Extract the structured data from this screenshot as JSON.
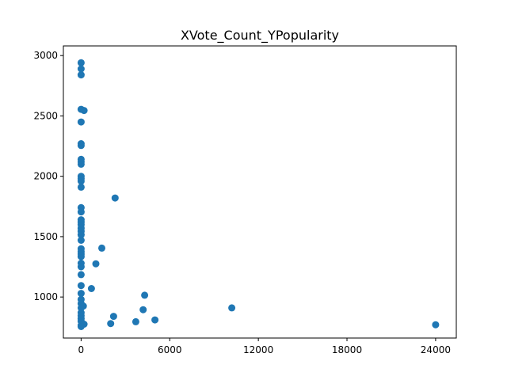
{
  "chart_data": {
    "type": "scatter",
    "title": "XVote_Count_YPopularity",
    "xlabel": "",
    "ylabel": "",
    "xlim": [
      -1200,
      25400
    ],
    "ylim": [
      660,
      3080
    ],
    "x_ticks": [
      0,
      6000,
      12000,
      18000,
      24000
    ],
    "x_tick_labels": [
      "0",
      "6000",
      "12000",
      "18000",
      "24000"
    ],
    "y_ticks": [
      1000,
      1500,
      2000,
      2500,
      3000
    ],
    "y_tick_labels": [
      "1000",
      "1500",
      "2000",
      "2500",
      "3000"
    ],
    "grid": false,
    "marker_color": "#1f77b4",
    "series": [
      {
        "name": "points",
        "points": [
          [
            0,
            2940
          ],
          [
            0,
            2890
          ],
          [
            0,
            2840
          ],
          [
            0,
            2555
          ],
          [
            200,
            2545
          ],
          [
            0,
            2450
          ],
          [
            0,
            2270
          ],
          [
            0,
            2255
          ],
          [
            0,
            2140
          ],
          [
            0,
            2120
          ],
          [
            0,
            2100
          ],
          [
            0,
            2000
          ],
          [
            0,
            1980
          ],
          [
            0,
            1960
          ],
          [
            0,
            1910
          ],
          [
            2300,
            1820
          ],
          [
            0,
            1740
          ],
          [
            0,
            1705
          ],
          [
            0,
            1640
          ],
          [
            0,
            1620
          ],
          [
            0,
            1600
          ],
          [
            0,
            1570
          ],
          [
            0,
            1545
          ],
          [
            0,
            1515
          ],
          [
            0,
            1470
          ],
          [
            1400,
            1405
          ],
          [
            0,
            1400
          ],
          [
            0,
            1375
          ],
          [
            0,
            1355
          ],
          [
            0,
            1335
          ],
          [
            1000,
            1275
          ],
          [
            0,
            1280
          ],
          [
            0,
            1250
          ],
          [
            0,
            1185
          ],
          [
            0,
            1095
          ],
          [
            700,
            1070
          ],
          [
            0,
            1030
          ],
          [
            4300,
            1015
          ],
          [
            0,
            980
          ],
          [
            0,
            945
          ],
          [
            150,
            925
          ],
          [
            0,
            910
          ],
          [
            10200,
            910
          ],
          [
            4200,
            895
          ],
          [
            0,
            870
          ],
          [
            0,
            845
          ],
          [
            2200,
            840
          ],
          [
            0,
            820
          ],
          [
            5000,
            810
          ],
          [
            0,
            800
          ],
          [
            3700,
            795
          ],
          [
            2000,
            780
          ],
          [
            200,
            775
          ],
          [
            24000,
            770
          ],
          [
            0,
            765
          ],
          [
            0,
            755
          ]
        ]
      }
    ]
  }
}
